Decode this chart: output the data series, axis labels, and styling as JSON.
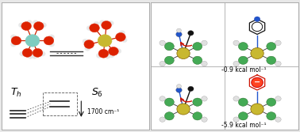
{
  "bg_color": "#e8e8e8",
  "left_panel_bg": "#ffffff",
  "right_panel_bg": "#ffffff",
  "text_color": "#000000",
  "energy_label": "1700 cm⁻¹",
  "top_right_energy": "-0.9 kcal mol⁻¹",
  "bottom_right_energy": "-5.9 kcal mol⁻¹",
  "panel_border_color": "#aaaaaa",
  "teal_center": "#7eccc0",
  "gold_center": "#c8b830",
  "red_oxygen": "#dd2200",
  "white_hydrogen": "#e8e8e8",
  "green_ligand": "#44aa55",
  "blue_ligand": "#2255cc",
  "black_ligand": "#111111",
  "red_arrow": "#cc1100",
  "dashed_color": "#555555"
}
